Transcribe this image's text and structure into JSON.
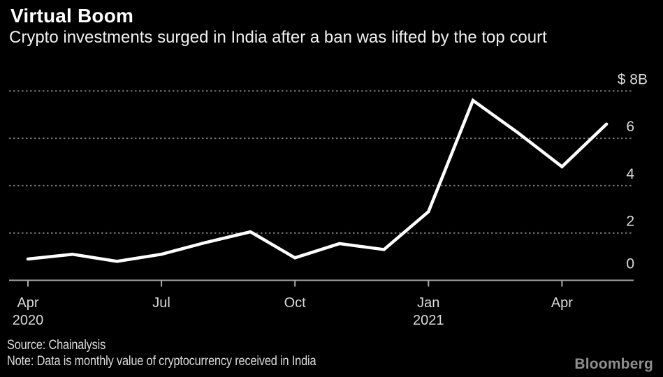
{
  "header": {
    "title": "Virtual Boom",
    "subtitle": "Crypto investments surged in India after a ban was lifted by the top court"
  },
  "footer": {
    "source": "Source: Chainalysis",
    "note": "Note: Data is monthly value of cryptocurrency received in India",
    "brand": "Bloomberg"
  },
  "chart_data": {
    "type": "line",
    "title": "Virtual Boom",
    "subtitle": "Crypto investments surged in India after a ban was lifted by the top court",
    "unit": "$B",
    "x": [
      "Apr 2020",
      "May 2020",
      "Jun 2020",
      "Jul 2020",
      "Aug 2020",
      "Sep 2020",
      "Oct 2020",
      "Nov 2020",
      "Dec 2020",
      "Jan 2021",
      "Feb 2021",
      "Mar 2021",
      "Apr 2021",
      "May 2021"
    ],
    "values": [
      0.9,
      1.1,
      0.8,
      1.1,
      1.6,
      2.05,
      0.95,
      1.55,
      1.3,
      2.9,
      7.6,
      6.25,
      4.8,
      6.6
    ],
    "ylim": [
      0,
      8
    ],
    "xlabel": "",
    "ylabel": "$B",
    "grid": "horizontal-dotted",
    "legend": "none",
    "y_ticks": [
      {
        "value": 8,
        "label": "$ 8B"
      },
      {
        "value": 6,
        "label": "6"
      },
      {
        "value": 4,
        "label": "4"
      },
      {
        "value": 2,
        "label": "2"
      },
      {
        "value": 0,
        "label": "0"
      }
    ],
    "x_ticks": [
      {
        "index": 0,
        "label": "Apr",
        "sublabel": "2020"
      },
      {
        "index": 3,
        "label": "Jul"
      },
      {
        "index": 6,
        "label": "Oct"
      },
      {
        "index": 9,
        "label": "Jan",
        "sublabel": "2021"
      },
      {
        "index": 12,
        "label": "Apr"
      }
    ],
    "line_color": "#ffffff",
    "grid_color": "#787878",
    "axis_color": "#a8a8a8",
    "tick_label_color": "#d9d9d9",
    "background": "#000000"
  }
}
